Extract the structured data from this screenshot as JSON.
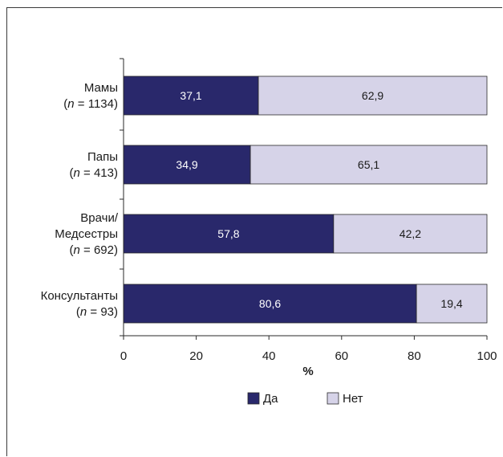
{
  "chart_data": {
    "type": "bar",
    "orientation": "horizontal",
    "stacked": true,
    "categories": [
      {
        "line1": "Мамы",
        "n": "1134"
      },
      {
        "line1": "Папы",
        "n": "413"
      },
      {
        "line1": "Врачи/",
        "line2": "Медсестры",
        "n": "692"
      },
      {
        "line1": "Консультанты",
        "n": "93"
      }
    ],
    "n_prefix": "n",
    "series": [
      {
        "name": "Да",
        "color": "#29286b",
        "label_color": "#ffffff",
        "values": [
          37.1,
          34.9,
          57.8,
          80.6
        ],
        "labels": [
          "37,1",
          "34,9",
          "57,8",
          "80,6"
        ]
      },
      {
        "name": "Нет",
        "color": "#d6d3e8",
        "label_color": "#1a1a1a",
        "values": [
          62.9,
          65.1,
          42.2,
          19.4
        ],
        "labels": [
          "62,9",
          "65,1",
          "42,2",
          "19,4"
        ]
      }
    ],
    "xticks": [
      "0",
      "20",
      "40",
      "60",
      "80",
      "100"
    ],
    "xlim": [
      0,
      100
    ],
    "xlabel": "%",
    "ylabel": "",
    "title": "",
    "grid": false,
    "legend_position": "bottom"
  }
}
